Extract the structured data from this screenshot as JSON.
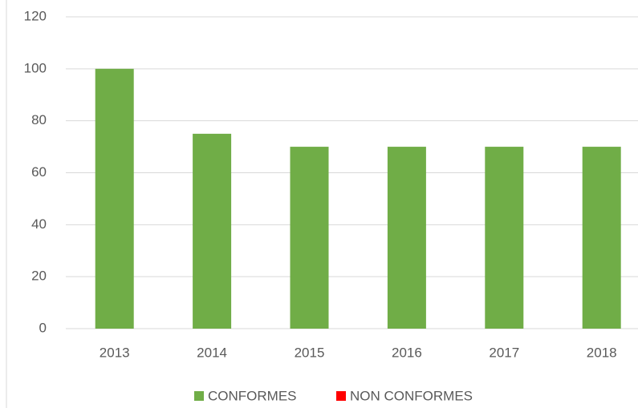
{
  "chart_data": {
    "type": "stacked_bar",
    "categories": [
      "2013",
      "2014",
      "2015",
      "2016",
      "2017",
      "2018"
    ],
    "series": [
      {
        "name": "CONFORMES",
        "color": "#70ad47",
        "values": [
          100,
          75,
          70,
          70,
          70,
          70
        ]
      },
      {
        "name": "NON CONFORMES",
        "color": "#ff0000",
        "values": [
          0,
          0,
          0,
          0,
          0,
          0
        ]
      }
    ],
    "ylim": [
      0,
      120
    ],
    "yticks": [
      0,
      20,
      40,
      60,
      80,
      100,
      120
    ],
    "grid": true,
    "legend": "bottom"
  }
}
